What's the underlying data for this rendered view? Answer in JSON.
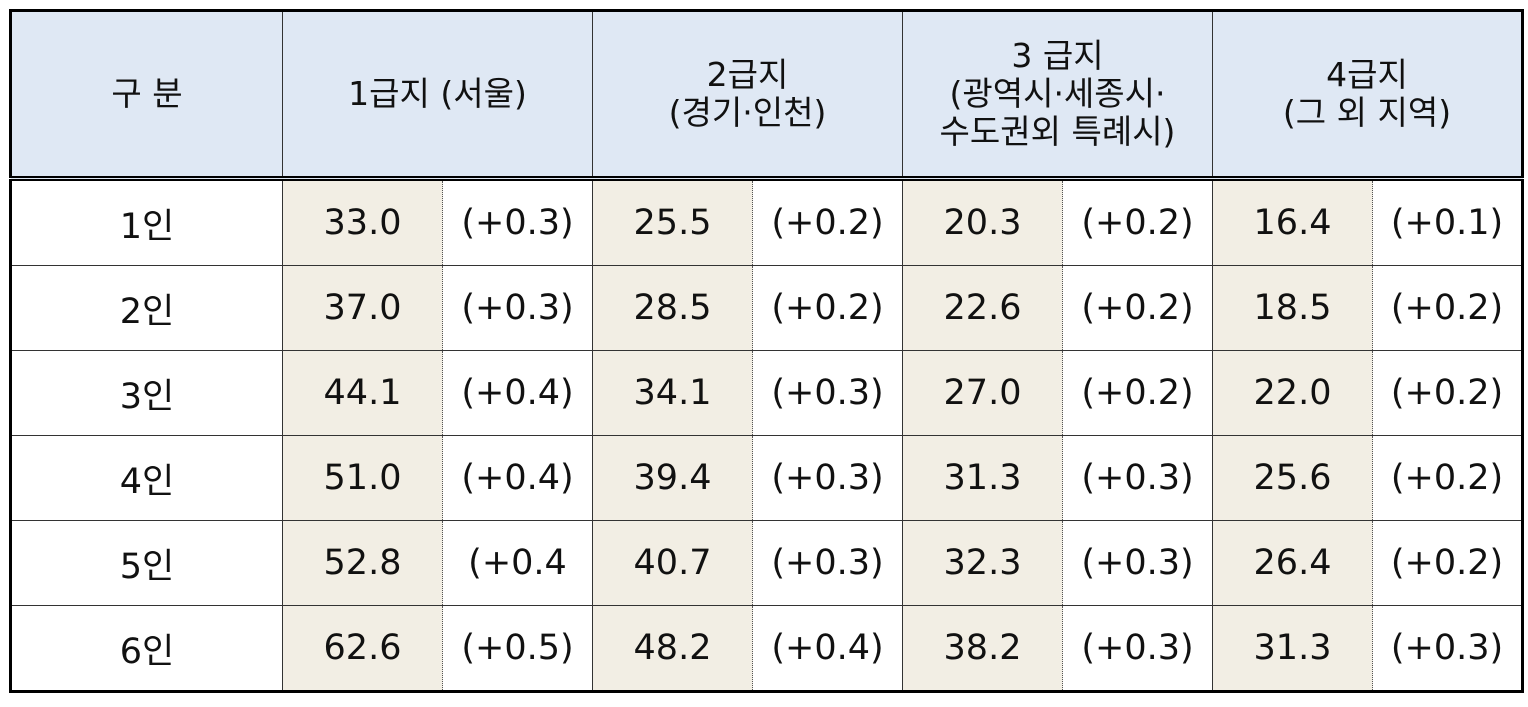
{
  "table": {
    "header": [
      [
        "구 분"
      ],
      [
        "1급지 (서울)"
      ],
      [
        "2급지",
        "(경기·인천)"
      ],
      [
        "3 급지",
        "(광역시·세종시·",
        "수도권외 특례시)"
      ],
      [
        "4급지",
        "(그 외 지역)"
      ]
    ],
    "rows": [
      [
        "1인",
        "33.0",
        "(+0.3)",
        "25.5",
        "(+0.2)",
        "20.3",
        "(+0.2)",
        "16.4",
        "(+0.1)"
      ],
      [
        "2인",
        "37.0",
        "(+0.3)",
        "28.5",
        "(+0.2)",
        "22.6",
        "(+0.2)",
        "18.5",
        "(+0.2)"
      ],
      [
        "3인",
        "44.1",
        "(+0.4)",
        "34.1",
        "(+0.3)",
        "27.0",
        "(+0.2)",
        "22.0",
        "(+0.2)"
      ],
      [
        "4인",
        "51.0",
        "(+0.4)",
        "39.4",
        "(+0.3)",
        "31.3",
        "(+0.3)",
        "25.6",
        "(+0.2)"
      ],
      [
        "5인",
        "52.8",
        "(+0.4",
        "40.7",
        "(+0.3)",
        "32.3",
        "(+0.3)",
        "26.4",
        "(+0.2)"
      ],
      [
        "6인",
        "62.6",
        "(+0.5)",
        "48.2",
        "(+0.4)",
        "38.2",
        "(+0.3)",
        "31.3",
        "(+0.3)"
      ]
    ]
  }
}
